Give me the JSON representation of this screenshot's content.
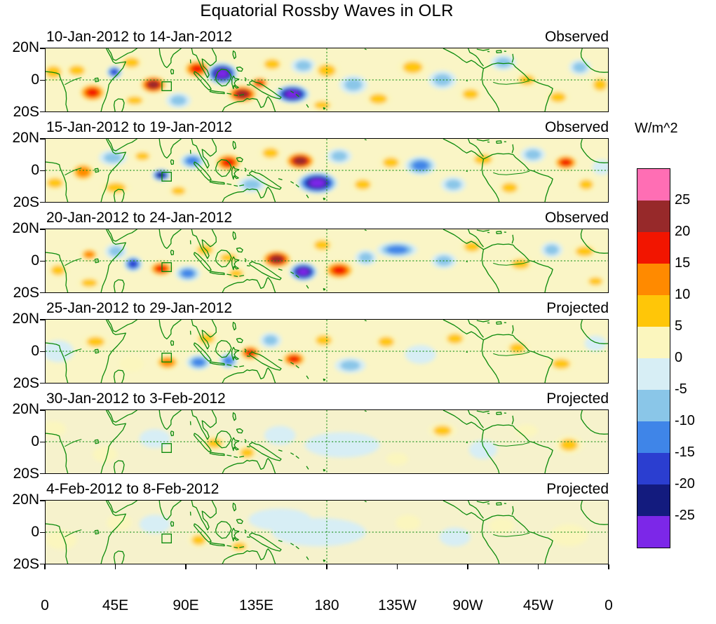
{
  "chart_data": {
    "type": "heatmap",
    "title": "Equatorial Rossby Waves in OLR",
    "colorbar": {
      "title": "W/m^2",
      "tick_labels": [
        "25",
        "20",
        "15",
        "10",
        "5",
        "0",
        "-5",
        "-10",
        "-15",
        "-20",
        "-25"
      ],
      "levels": [
        -25,
        -20,
        -15,
        -10,
        -5,
        0,
        5,
        10,
        15,
        20,
        25
      ],
      "colors_top_to_bottom": [
        "#FF6EB4",
        "#97292A",
        "#F21500",
        "#FF8A00",
        "#FFC608",
        "#FBF6BE",
        "#D7EEF5",
        "#8AC6E8",
        "#3F85E8",
        "#2B3ED0",
        "#131B7E",
        "#7C27E8"
      ]
    },
    "x_ticks": [
      "0",
      "45E",
      "90E",
      "135E",
      "180",
      "135W",
      "90W",
      "45W",
      "0"
    ],
    "y_ticks": [
      "20N",
      "0",
      "20S"
    ],
    "lon_range_deg_east": [
      0,
      360
    ],
    "lat_range_deg": [
      -20,
      20
    ],
    "map_line_color": "#0b8a0b",
    "marker_box": {
      "lon_min": 74.5,
      "lon_max": 80.5,
      "lat_min": -6.8,
      "lat_max": -1.2
    },
    "anomaly_format": "[lon_deg_east_0_360, lat_deg, semi_width_deg, semi_height_deg, peak_anomaly_W_per_m2]",
    "panels": [
      {
        "date_label": "10-Jan-2012 to 14-Jan-2012",
        "mode": "Observed",
        "base": "#FAF5C6",
        "anomalies": [
          [
            5,
            5,
            8,
            6,
            6
          ],
          [
            20,
            6,
            8,
            5,
            6
          ],
          [
            30,
            -8,
            9,
            6,
            16
          ],
          [
            44,
            5,
            5,
            4,
            -17
          ],
          [
            55,
            11,
            8,
            5,
            7
          ],
          [
            57,
            -13,
            8,
            4,
            6
          ],
          [
            69,
            -3,
            9,
            6,
            22
          ],
          [
            85,
            -13,
            8,
            5,
            -7
          ],
          [
            97,
            7,
            9,
            6,
            18
          ],
          [
            113,
            4,
            10,
            7,
            -28
          ],
          [
            126,
            -9,
            10,
            6,
            23
          ],
          [
            137,
            -2,
            6,
            4,
            17
          ],
          [
            145,
            10,
            8,
            5,
            8
          ],
          [
            158,
            -9,
            11,
            6,
            -27
          ],
          [
            165,
            9,
            8,
            5,
            -8
          ],
          [
            180,
            6,
            9,
            6,
            10
          ],
          [
            177,
            -16,
            8,
            4,
            7
          ],
          [
            197,
            -3,
            9,
            6,
            -7
          ],
          [
            213,
            -12,
            9,
            5,
            8
          ],
          [
            235,
            8,
            10,
            6,
            8
          ],
          [
            254,
            0,
            9,
            6,
            -9
          ],
          [
            272,
            -9,
            8,
            5,
            7
          ],
          [
            293,
            11,
            8,
            5,
            -6
          ],
          [
            308,
            0,
            8,
            5,
            9
          ],
          [
            328,
            -11,
            8,
            5,
            7
          ],
          [
            342,
            8,
            7,
            5,
            -6
          ],
          [
            355,
            -3,
            7,
            6,
            8
          ]
        ]
      },
      {
        "date_label": "15-Jan-2012 to 19-Jan-2012",
        "mode": "Observed",
        "base": "#FAF5C6",
        "anomalies": [
          [
            6,
            -8,
            8,
            5,
            6
          ],
          [
            24,
            -1,
            8,
            6,
            14
          ],
          [
            45,
            -11,
            10,
            5,
            6
          ],
          [
            43,
            8,
            9,
            5,
            -6
          ],
          [
            62,
            9,
            7,
            4,
            6
          ],
          [
            74,
            -3,
            6,
            4,
            -22
          ],
          [
            85,
            -13,
            7,
            4,
            7
          ],
          [
            94,
            6,
            8,
            5,
            -12
          ],
          [
            117,
            5,
            9,
            6,
            16
          ],
          [
            132,
            -9,
            9,
            5,
            -10
          ],
          [
            144,
            11,
            8,
            5,
            7
          ],
          [
            163,
            6,
            10,
            6,
            21
          ],
          [
            174,
            -8,
            13,
            7,
            -28
          ],
          [
            188,
            9,
            8,
            5,
            -8
          ],
          [
            203,
            -9,
            8,
            5,
            10
          ],
          [
            221,
            5,
            8,
            5,
            7
          ],
          [
            240,
            3,
            10,
            6,
            -14
          ],
          [
            261,
            -9,
            8,
            5,
            -7
          ],
          [
            280,
            7,
            9,
            5,
            10
          ],
          [
            297,
            -11,
            8,
            5,
            7
          ],
          [
            312,
            10,
            8,
            5,
            -6
          ],
          [
            333,
            5,
            8,
            5,
            17
          ],
          [
            346,
            -9,
            7,
            5,
            7
          ],
          [
            356,
            2,
            6,
            5,
            -5
          ]
        ]
      },
      {
        "date_label": "20-Jan-2012 to 24-Jan-2012",
        "mode": "Observed",
        "base": "#FAF5C6",
        "anomalies": [
          [
            8,
            -6,
            7,
            5,
            9
          ],
          [
            28,
            4,
            6,
            4,
            12
          ],
          [
            28,
            -14,
            8,
            4,
            6
          ],
          [
            45,
            6,
            7,
            5,
            -6
          ],
          [
            56,
            -2,
            6,
            5,
            -20
          ],
          [
            74,
            -5,
            8,
            5,
            18
          ],
          [
            91,
            -8,
            8,
            5,
            -13
          ],
          [
            102,
            7,
            8,
            5,
            7
          ],
          [
            117,
            2,
            8,
            4,
            6
          ],
          [
            122,
            -8,
            7,
            4,
            8
          ],
          [
            148,
            1,
            10,
            6,
            23
          ],
          [
            165,
            -7,
            9,
            6,
            -28
          ],
          [
            188,
            -6,
            10,
            6,
            20
          ],
          [
            177,
            10,
            8,
            5,
            7
          ],
          [
            205,
            2,
            7,
            5,
            -6
          ],
          [
            225,
            7,
            13,
            5,
            -13
          ],
          [
            255,
            0,
            8,
            5,
            -9
          ],
          [
            273,
            9,
            8,
            5,
            6
          ],
          [
            304,
            -2,
            9,
            5,
            9
          ],
          [
            324,
            7,
            7,
            5,
            -6
          ],
          [
            345,
            6,
            9,
            5,
            7
          ],
          [
            352,
            -13,
            7,
            4,
            6
          ]
        ]
      },
      {
        "date_label": "25-Jan-2012 to 29-Jan-2012",
        "mode": "Projected",
        "base": "#FAF5C6",
        "anomalies": [
          [
            8,
            0,
            10,
            7,
            -5
          ],
          [
            32,
            6,
            9,
            5,
            6
          ],
          [
            55,
            -8,
            8,
            5,
            4
          ],
          [
            78,
            -7,
            8,
            5,
            12
          ],
          [
            98,
            -7,
            8,
            5,
            -13
          ],
          [
            117,
            -6,
            6,
            5,
            -14
          ],
          [
            103,
            8,
            8,
            5,
            6
          ],
          [
            131,
            -1,
            7,
            5,
            19
          ],
          [
            144,
            7,
            7,
            5,
            -8
          ],
          [
            159,
            -5,
            8,
            5,
            17
          ],
          [
            178,
            7,
            8,
            5,
            6
          ],
          [
            195,
            -9,
            10,
            5,
            -6
          ],
          [
            218,
            6,
            8,
            5,
            6
          ],
          [
            240,
            -2,
            10,
            6,
            -5
          ],
          [
            262,
            8,
            8,
            5,
            6
          ],
          [
            302,
            2,
            8,
            5,
            6
          ],
          [
            330,
            -8,
            9,
            5,
            7
          ],
          [
            352,
            5,
            7,
            5,
            -5
          ]
        ]
      },
      {
        "date_label": "30-Jan-2012 to 3-Feb-2012",
        "mode": "Projected",
        "base": "#F6F2CC",
        "anomalies": [
          [
            5,
            8,
            8,
            5,
            4
          ],
          [
            38,
            -8,
            8,
            5,
            4
          ],
          [
            70,
            2,
            10,
            6,
            -4
          ],
          [
            108,
            -1,
            8,
            5,
            8
          ],
          [
            129,
            -7,
            7,
            5,
            7
          ],
          [
            150,
            4,
            10,
            6,
            -5
          ],
          [
            190,
            -2,
            24,
            8,
            -5
          ],
          [
            225,
            -11,
            7,
            4,
            4
          ],
          [
            254,
            7,
            9,
            5,
            6
          ],
          [
            280,
            -5,
            9,
            6,
            -4
          ],
          [
            308,
            7,
            7,
            4,
            4
          ],
          [
            335,
            -2,
            9,
            6,
            6
          ]
        ]
      },
      {
        "date_label": "4-Feb-2012 to 8-Feb-2012",
        "mode": "Projected",
        "base": "#F6F2CC",
        "anomalies": [
          [
            10,
            -5,
            10,
            6,
            4
          ],
          [
            47,
            6,
            8,
            5,
            4
          ],
          [
            70,
            5,
            10,
            6,
            -4
          ],
          [
            98,
            -5,
            7,
            5,
            7
          ],
          [
            124,
            -9,
            7,
            4,
            6
          ],
          [
            175,
            0,
            30,
            9,
            -5
          ],
          [
            150,
            8,
            20,
            7,
            -4
          ],
          [
            232,
            6,
            8,
            5,
            4
          ],
          [
            262,
            -3,
            10,
            6,
            -4
          ],
          [
            292,
            4,
            8,
            5,
            4
          ],
          [
            335,
            -2,
            12,
            7,
            4
          ]
        ]
      }
    ]
  }
}
